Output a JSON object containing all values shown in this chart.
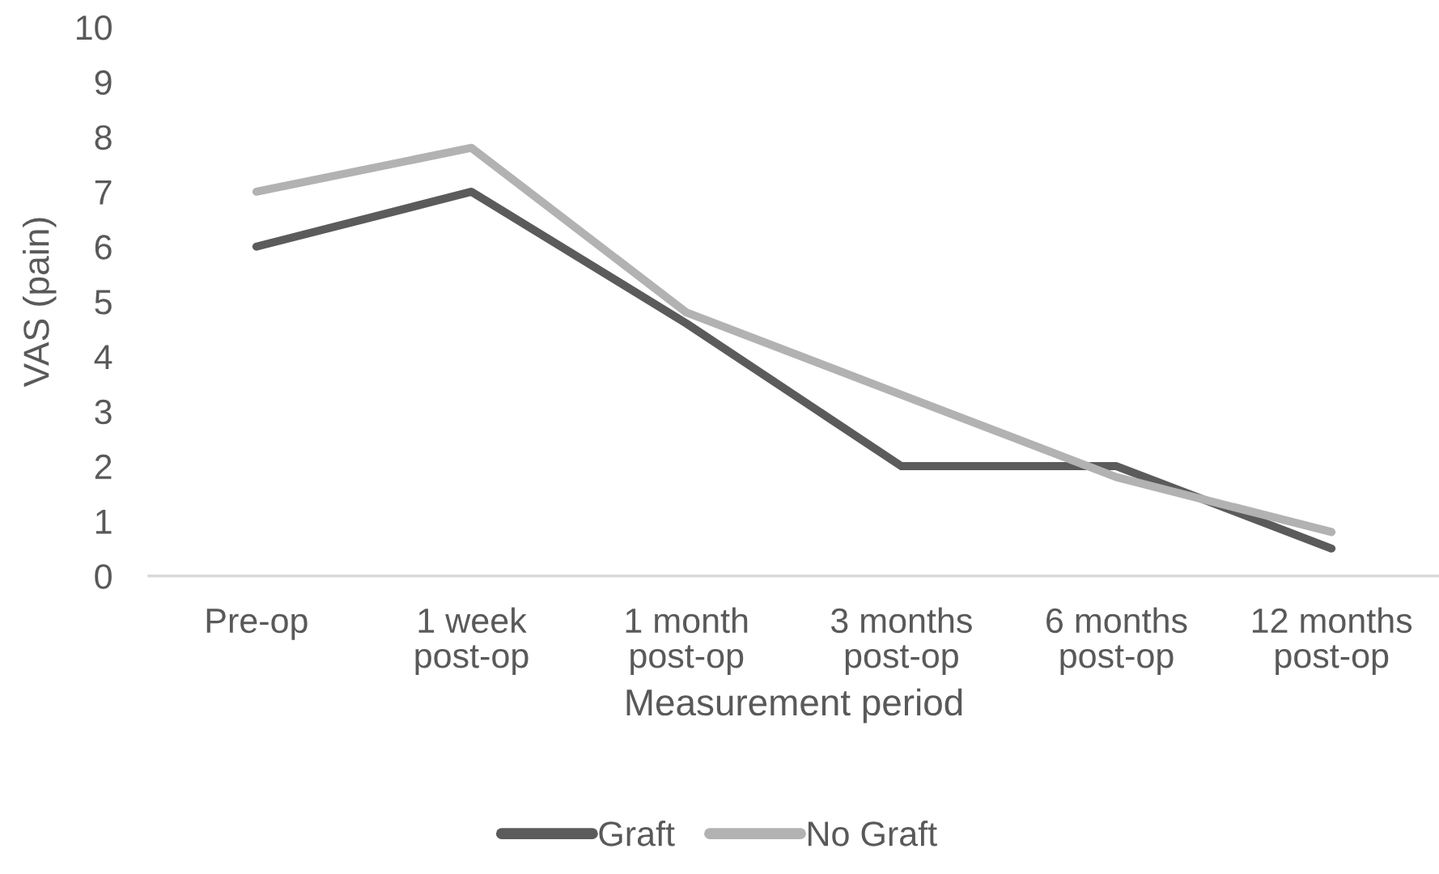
{
  "chart_data": {
    "type": "line",
    "xlabel": "Measurement period",
    "ylabel": "VAS (pain)",
    "categories": [
      "Pre-op",
      "1 week\npost-op",
      "1 month\npost-op",
      "3 months\npost-op",
      "6 months\npost-op",
      "12 months\npost-op"
    ],
    "series": [
      {
        "name": "Graft",
        "color": "#5b5b5b",
        "values": [
          6,
          7,
          4.6,
          2,
          2,
          0.5
        ]
      },
      {
        "name": "No Graft",
        "color": "#b2b2b2",
        "values": [
          7,
          7.8,
          4.8,
          3.3,
          1.8,
          0.8
        ]
      }
    ],
    "ylim": [
      0,
      10
    ],
    "yticks": [
      0,
      1,
      2,
      3,
      4,
      5,
      6,
      7,
      8,
      9,
      10
    ],
    "grid": false,
    "legend": "bottom",
    "line_style": "solid"
  }
}
